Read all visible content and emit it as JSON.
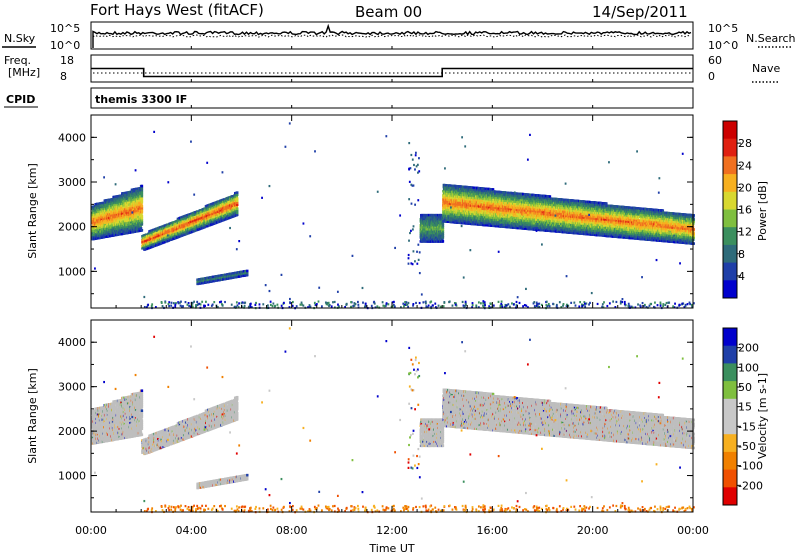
{
  "header": {
    "station": "Fort Hays West (fitACF)",
    "beam": "Beam 00",
    "date": "14/Sep/2011"
  },
  "top_panels": {
    "nsky_label": "N.Sky",
    "nsearch_label": "N.Search",
    "freq_label_1": "Freq.",
    "freq_label_2": "[MHz]",
    "nave_label": "Nave",
    "cpid_label": "CPID",
    "cpid_value": "themis 3300 IF",
    "noise_ticks": [
      "10^5",
      "10^0"
    ],
    "freq_ticks": [
      "18",
      "8"
    ],
    "nave_ticks": [
      "60",
      "0"
    ]
  },
  "colors": {
    "power_scale": [
      "#0000cc",
      "#1f3fa8",
      "#2e6b7a",
      "#3b8f5e",
      "#7fbf3f",
      "#d8d830",
      "#f7b020",
      "#f07020",
      "#e02010",
      "#cc0000"
    ],
    "velocity_scale": [
      "#e00000",
      "#f05000",
      "#f08000",
      "#f7b020",
      "#c8c8c8",
      "#c8c8c8",
      "#7fbf3f",
      "#3b8f5e",
      "#1f3fa8",
      "#0000cc"
    ],
    "ground_scatter": "#bebebe"
  },
  "chart_data": [
    {
      "type": "heatmap",
      "title": "",
      "xlabel": "Time UT",
      "ylabel": "Slant Range [km]",
      "xlim": [
        "00:00",
        "24:00"
      ],
      "ylim": [
        180,
        4500
      ],
      "x_ticks": [
        "00:00",
        "04:00",
        "08:00",
        "12:00",
        "16:00",
        "20:00",
        "00:00"
      ],
      "y_ticks": [
        "1000",
        "2000",
        "3000",
        "4000"
      ],
      "colorbar_label": "Power [dB]",
      "colorbar_ticks": [
        "4",
        "8",
        "12",
        "16",
        "20",
        "24",
        "28"
      ],
      "echo_regions": [
        {
          "t_start": 0.0,
          "t_end": 2.0,
          "range_low": 1750,
          "range_high": 2950,
          "peak_db": 22
        },
        {
          "t_start": 2.0,
          "t_end": 5.8,
          "range_low": 1500,
          "range_high": 2800,
          "peak_db": 24
        },
        {
          "t_start": 4.2,
          "t_end": 6.2,
          "range_low": 750,
          "range_high": 1050,
          "peak_db": 6
        },
        {
          "t_start": 13.1,
          "t_end": 14.0,
          "range_low": 1700,
          "range_high": 2300,
          "peak_db": 10
        },
        {
          "t_start": 14.0,
          "t_end": 24.0,
          "range_low": 1600,
          "range_high": 3000,
          "peak_db": 22
        }
      ]
    },
    {
      "type": "heatmap",
      "title": "",
      "xlabel": "Time UT",
      "ylabel": "Slant Range [km]",
      "xlim": [
        "00:00",
        "24:00"
      ],
      "ylim": [
        180,
        4500
      ],
      "x_ticks": [
        "00:00",
        "04:00",
        "08:00",
        "12:00",
        "16:00",
        "20:00",
        "00:00"
      ],
      "y_ticks": [
        "1000",
        "2000",
        "3000",
        "4000"
      ],
      "colorbar_label": "Velocity [m s-1]",
      "colorbar_ticks": [
        "200",
        "100",
        "50",
        "15",
        "-15",
        "-50",
        "-100",
        "-200"
      ],
      "dominant_value": "ground scatter (grey)"
    },
    {
      "type": "line",
      "title": "",
      "xlabel": "",
      "ylabel": "Freq. [MHz]",
      "x": [
        0,
        2.1,
        2.1,
        14.0,
        14.0,
        24.0
      ],
      "series": [
        {
          "values": [
            13,
            13,
            9.5,
            9.5,
            13,
            13
          ]
        }
      ],
      "ylim": [
        8,
        18
      ]
    }
  ]
}
